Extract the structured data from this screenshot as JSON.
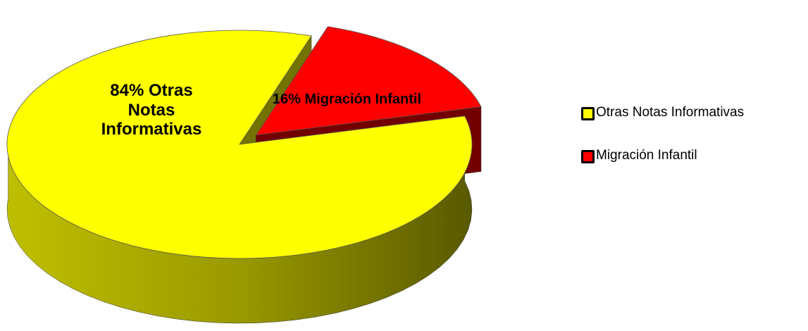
{
  "chart_data": {
    "type": "pie",
    "categories": [
      "Otras Notas Informativas",
      "Migración Infantil"
    ],
    "values": [
      84,
      16
    ],
    "value_labels": [
      "84% Otras Notas Informativas",
      "16% Migración Infantil"
    ],
    "colors": [
      "#ffff00",
      "#ff0000"
    ],
    "exploded": [
      false,
      true
    ],
    "legend": "right"
  }
}
